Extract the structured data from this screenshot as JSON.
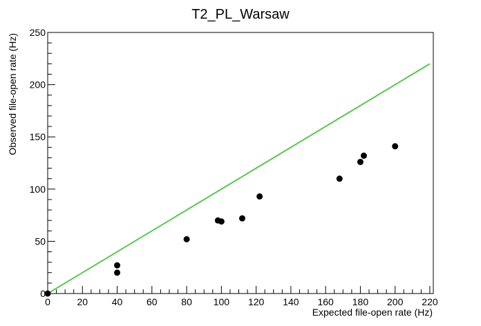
{
  "chart_data": {
    "type": "scatter",
    "title": "T2_PL_Warsaw",
    "xlabel": "Expected file-open rate (Hz)",
    "ylabel": "Observed file-open rate (Hz)",
    "xlim": [
      0,
      222
    ],
    "ylim": [
      0,
      250
    ],
    "xticks": [
      0,
      20,
      40,
      60,
      80,
      100,
      120,
      140,
      160,
      180,
      200,
      220
    ],
    "yticks": [
      0,
      50,
      100,
      150,
      200,
      250
    ],
    "grid": false,
    "points": [
      {
        "x": 0,
        "y": 0
      },
      {
        "x": 40,
        "y": 27
      },
      {
        "x": 40,
        "y": 20
      },
      {
        "x": 80,
        "y": 52
      },
      {
        "x": 98,
        "y": 70
      },
      {
        "x": 100,
        "y": 69
      },
      {
        "x": 112,
        "y": 72
      },
      {
        "x": 122,
        "y": 93
      },
      {
        "x": 168,
        "y": 110
      },
      {
        "x": 180,
        "y": 126
      },
      {
        "x": 182,
        "y": 132
      },
      {
        "x": 200,
        "y": 141
      }
    ],
    "reference_line": {
      "x": [
        0,
        220
      ],
      "y": [
        0,
        220
      ],
      "color": "#57c84d"
    },
    "marker_color": "#000000"
  }
}
